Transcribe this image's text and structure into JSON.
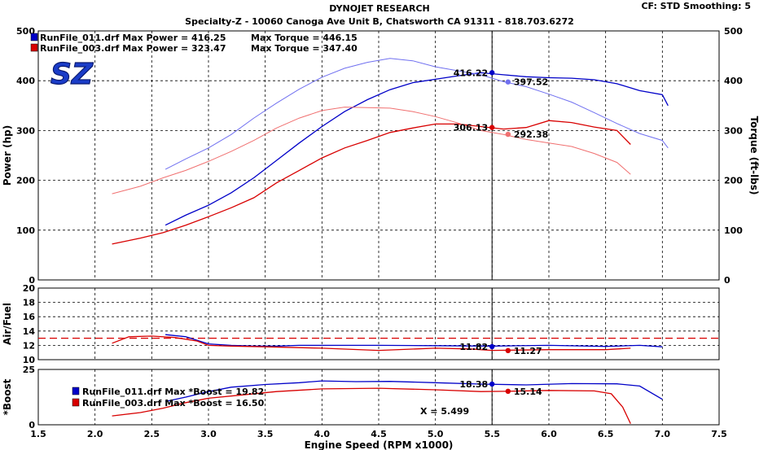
{
  "header": {
    "title": "DYNOJET RESEARCH",
    "subtitle": "Specialty-Z - 10060 Canoga Ave Unit B, Chatsworth CA 91311 - 818.703.6272",
    "cf": "CF: STD  Smoothing: 5"
  },
  "logo_text": "SZ",
  "colors": {
    "run1": "#0000c8",
    "run2": "#d80000",
    "run1_light": "#7070f0",
    "run2_light": "#f07070",
    "logo": "#1a3cc8"
  },
  "legend_main": [
    {
      "text": "RunFile_011.drf Max Power = 416.25",
      "torque": "Max Torque = 446.15",
      "color": "#0000c8"
    },
    {
      "text": "RunFile_003.drf Max Power = 323.47",
      "torque": "Max Torque = 347.40",
      "color": "#d80000"
    }
  ],
  "legend_boost": [
    {
      "text": "RunFile_011.drf Max *Boost = 19.82",
      "color": "#0000c8"
    },
    {
      "text": "RunFile_003.drf Max *Boost = 16.50",
      "color": "#d80000"
    }
  ],
  "cursor_label": "X = 5.499",
  "chart_data": [
    {
      "type": "line",
      "panel": "power_torque",
      "xlabel": "Engine Speed (RPM x1000)",
      "ylabel": "Power (hp)",
      "ylabel_right": "Torque (ft-lbs)",
      "xlim": [
        1.5,
        7.5
      ],
      "ylim": [
        0,
        500
      ],
      "y_ticks": [
        "0",
        "100",
        "200",
        "300",
        "400",
        "500"
      ],
      "grid": true,
      "cursor_x": 5.499,
      "series": [
        {
          "name": "RunFile_011.drf",
          "measure": "power",
          "x": [
            2.62,
            2.8,
            3.0,
            3.2,
            3.4,
            3.6,
            3.8,
            4.0,
            4.2,
            4.4,
            4.6,
            4.8,
            5.0,
            5.2,
            5.4,
            5.6,
            5.8,
            6.0,
            6.2,
            6.4,
            6.6,
            6.8,
            7.0,
            7.05
          ],
          "y": [
            110,
            130,
            150,
            175,
            205,
            240,
            275,
            308,
            338,
            362,
            382,
            396,
            403,
            410,
            416,
            412,
            408,
            406,
            405,
            402,
            394,
            380,
            372,
            350
          ]
        },
        {
          "name": "RunFile_011.drf",
          "measure": "torque",
          "x": [
            2.62,
            2.8,
            3.0,
            3.2,
            3.4,
            3.6,
            3.8,
            4.0,
            4.2,
            4.4,
            4.6,
            4.8,
            5.0,
            5.2,
            5.4,
            5.6,
            5.8,
            6.0,
            6.2,
            6.4,
            6.6,
            6.8,
            7.0,
            7.05
          ],
          "y": [
            222,
            243,
            265,
            292,
            325,
            355,
            383,
            407,
            425,
            437,
            445,
            440,
            428,
            420,
            412,
            398,
            388,
            373,
            357,
            336,
            314,
            294,
            280,
            265
          ]
        },
        {
          "name": "RunFile_003.drf",
          "measure": "power",
          "x": [
            2.15,
            2.4,
            2.6,
            2.8,
            3.0,
            3.2,
            3.4,
            3.6,
            3.8,
            4.0,
            4.2,
            4.4,
            4.6,
            4.8,
            5.0,
            5.2,
            5.4,
            5.6,
            5.8,
            6.0,
            6.2,
            6.4,
            6.6,
            6.72
          ],
          "y": [
            72,
            84,
            95,
            110,
            127,
            145,
            165,
            195,
            220,
            245,
            265,
            280,
            296,
            305,
            313,
            313,
            308,
            303,
            306,
            320,
            316,
            307,
            300,
            272
          ]
        },
        {
          "name": "RunFile_003.drf",
          "measure": "torque",
          "x": [
            2.15,
            2.4,
            2.6,
            2.8,
            3.0,
            3.2,
            3.4,
            3.6,
            3.8,
            4.0,
            4.2,
            4.4,
            4.6,
            4.8,
            5.0,
            5.2,
            5.4,
            5.6,
            5.8,
            6.0,
            6.2,
            6.4,
            6.6,
            6.72
          ],
          "y": [
            173,
            188,
            205,
            220,
            238,
            258,
            280,
            305,
            325,
            340,
            347,
            346,
            345,
            338,
            328,
            315,
            300,
            292,
            282,
            275,
            268,
            254,
            236,
            212
          ]
        }
      ],
      "markers": [
        {
          "x": 5.499,
          "y": 416.22,
          "label": "416.22",
          "color": "#0000c8",
          "side": "left"
        },
        {
          "x": 5.499,
          "y": 306.13,
          "label": "306.13",
          "color": "#d80000",
          "side": "left"
        },
        {
          "x": 5.64,
          "y": 397.52,
          "label": "397.52",
          "color": "#7070f0",
          "side": "right"
        },
        {
          "x": 5.64,
          "y": 292.38,
          "label": "292.38",
          "color": "#f07070",
          "side": "right"
        }
      ]
    },
    {
      "type": "line",
      "panel": "air_fuel",
      "ylabel": "Air/Fuel",
      "xlim": [
        1.5,
        7.5
      ],
      "ylim": [
        10,
        20
      ],
      "y_ticks": [
        "10",
        "12",
        "14",
        "16",
        "18",
        "20"
      ],
      "reference_line": 13,
      "grid": true,
      "series": [
        {
          "name": "RunFile_011.drf",
          "x": [
            2.62,
            2.8,
            3.0,
            3.2,
            3.4,
            3.6,
            3.8,
            4.0,
            4.5,
            5.0,
            5.5,
            6.0,
            6.5,
            6.8,
            7.0
          ],
          "y": [
            13.5,
            13.2,
            12.2,
            12.0,
            11.9,
            11.9,
            12.0,
            12.0,
            12.0,
            11.95,
            11.9,
            12.0,
            11.85,
            12.0,
            11.8
          ]
        },
        {
          "name": "RunFile_003.drf",
          "x": [
            2.15,
            2.3,
            2.5,
            2.7,
            2.9,
            3.0,
            3.2,
            3.5,
            4.0,
            4.5,
            5.0,
            5.3,
            5.5,
            6.0,
            6.5,
            6.72
          ],
          "y": [
            12.3,
            13.2,
            13.3,
            13.1,
            12.6,
            12.0,
            11.9,
            11.8,
            11.6,
            11.3,
            11.6,
            11.5,
            11.3,
            11.4,
            11.4,
            11.6
          ]
        }
      ],
      "markers": [
        {
          "x": 5.499,
          "y": 11.82,
          "label": "11.82",
          "color": "#0000c8",
          "side": "left"
        },
        {
          "x": 5.64,
          "y": 11.27,
          "label": "11.27",
          "color": "#d80000",
          "side": "right"
        }
      ]
    },
    {
      "type": "line",
      "panel": "boost",
      "ylabel": "*Boost",
      "xlim": [
        1.5,
        7.5
      ],
      "ylim": [
        0,
        25
      ],
      "y_ticks": [
        "0",
        "25"
      ],
      "x_ticks": [
        "1.5",
        "2.0",
        "2.5",
        "3.0",
        "3.5",
        "4.0",
        "4.5",
        "5.0",
        "5.5",
        "6.0",
        "6.5",
        "7.0",
        "7.5"
      ],
      "grid": true,
      "series": [
        {
          "name": "RunFile_011.drf",
          "x": [
            2.62,
            2.8,
            3.0,
            3.2,
            3.5,
            3.8,
            4.0,
            4.3,
            4.6,
            5.0,
            5.4,
            5.8,
            6.2,
            6.6,
            6.8,
            7.0
          ],
          "y": [
            10.5,
            12.5,
            15.0,
            17.0,
            18.2,
            19.0,
            19.8,
            19.5,
            19.6,
            19.0,
            18.4,
            18.0,
            18.6,
            18.5,
            17.5,
            11.5
          ]
        },
        {
          "name": "RunFile_003.drf",
          "x": [
            2.15,
            2.4,
            2.6,
            2.8,
            3.0,
            3.3,
            3.6,
            4.0,
            4.5,
            5.0,
            5.4,
            5.6,
            6.0,
            6.4,
            6.55,
            6.65,
            6.72
          ],
          "y": [
            4.0,
            5.5,
            7.5,
            10.0,
            12.0,
            13.5,
            15.0,
            16.2,
            16.5,
            15.8,
            15.0,
            15.1,
            15.5,
            15.3,
            14.0,
            8.0,
            0.5
          ]
        }
      ],
      "markers": [
        {
          "x": 5.499,
          "y": 18.38,
          "label": "18.38",
          "color": "#0000c8",
          "side": "left"
        },
        {
          "x": 5.64,
          "y": 15.14,
          "label": "15.14",
          "color": "#d80000",
          "side": "right"
        }
      ]
    }
  ]
}
